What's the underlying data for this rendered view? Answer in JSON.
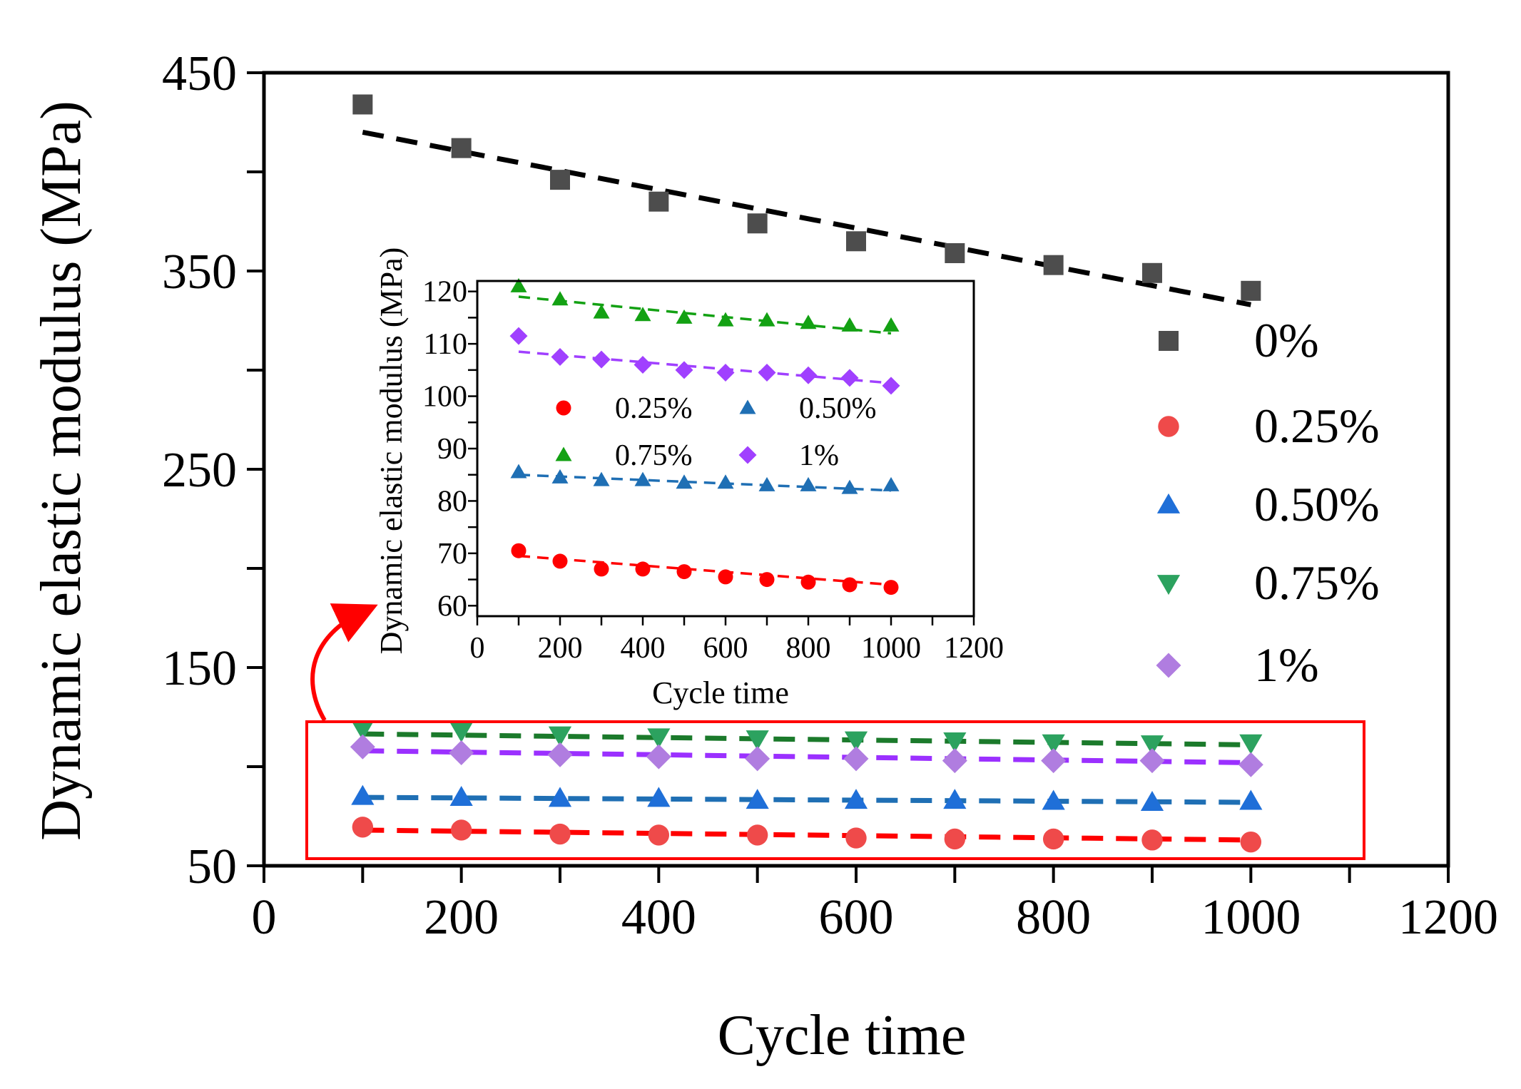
{
  "chart_data": [
    {
      "id": "main",
      "type": "scatter",
      "xlabel": "Cycle time",
      "ylabel": "Dynamic elastic modulus (MPa)",
      "xlim": [
        0,
        1200
      ],
      "ylim": [
        50,
        450
      ],
      "xticks": [
        0,
        200,
        400,
        600,
        800,
        1000,
        1200
      ],
      "yticks": [
        50,
        150,
        250,
        350,
        450
      ],
      "tick_labels_x": [
        "0",
        "200",
        "400",
        "600",
        "800",
        "1000",
        "1200"
      ],
      "tick_labels_y": [
        "50",
        "150",
        "250",
        "350",
        "450"
      ],
      "legend_position": "right",
      "x": [
        100,
        200,
        300,
        400,
        500,
        600,
        700,
        800,
        900,
        1000
      ],
      "series": [
        {
          "name": "0%",
          "marker": "square",
          "color": "#4d4d4d",
          "line_color": "#000000",
          "values": [
            434,
            412,
            396,
            385,
            374,
            365,
            359,
            353,
            349,
            340
          ],
          "fit": [
            [
              100,
              420
            ],
            [
              1000,
              333
            ]
          ]
        },
        {
          "name": "0.25%",
          "marker": "circle",
          "color": "#ef4a4a",
          "line_color": "#ff0000",
          "values": [
            69.5,
            68,
            66,
            65.5,
            65.5,
            64,
            63.5,
            63.5,
            63,
            62
          ],
          "fit": [
            [
              100,
              68
            ],
            [
              1000,
              63
            ]
          ]
        },
        {
          "name": "0.50%",
          "marker": "triangle-up",
          "color": "#1f6fd8",
          "line_color": "#1f6fb4",
          "values": [
            85,
            84.5,
            84,
            84,
            83,
            83,
            83,
            82.5,
            82,
            82.5
          ],
          "fit": [
            [
              100,
              84.5
            ],
            [
              1000,
              82
            ]
          ]
        },
        {
          "name": "0.75%",
          "marker": "triangle-down",
          "color": "#2ca25f",
          "line_color": "#1b7a2b",
          "values": [
            119,
            118,
            116,
            115,
            114,
            113.5,
            113,
            112,
            111.5,
            112
          ],
          "fit": [
            [
              100,
              116.5
            ],
            [
              1000,
              111
            ]
          ]
        },
        {
          "name": "1%",
          "marker": "diamond",
          "color": "#b07de0",
          "line_color": "#9b30ff",
          "values": [
            110,
            107,
            106,
            105,
            104,
            104,
            103,
            103,
            103,
            101
          ],
          "fit": [
            [
              100,
              108
            ],
            [
              1000,
              102
            ]
          ]
        }
      ]
    },
    {
      "id": "inset",
      "type": "scatter",
      "xlabel": "Cycle time",
      "ylabel": "Dynamic elastic modulus (MPa)",
      "xlim": [
        0,
        1200
      ],
      "ylim": [
        58,
        122
      ],
      "xticks": [
        0,
        200,
        400,
        600,
        800,
        1000,
        1200
      ],
      "yticks": [
        60,
        70,
        80,
        90,
        100,
        110,
        120
      ],
      "tick_labels_x": [
        "0",
        "200",
        "400",
        "600",
        "800",
        "1000",
        "1200"
      ],
      "tick_labels_y": [
        "60",
        "70",
        "80",
        "90",
        "100",
        "110",
        "120"
      ],
      "legend_position": "middle, two columns",
      "x": [
        100,
        200,
        300,
        400,
        500,
        600,
        700,
        800,
        900,
        1000
      ],
      "series": [
        {
          "name": "0.25%",
          "marker": "circle",
          "color": "#ff0000",
          "values": [
            70.5,
            68.5,
            67,
            67,
            66.5,
            65.5,
            65,
            64.5,
            64,
            63.5
          ],
          "fit": [
            [
              100,
              69.5
            ],
            [
              1000,
              64
            ]
          ]
        },
        {
          "name": "0.50%",
          "marker": "triangle-up",
          "color": "#1f6fb4",
          "values": [
            85.5,
            84.5,
            84,
            84,
            83.5,
            83.5,
            83,
            83,
            82.5,
            83
          ],
          "fit": [
            [
              100,
              85
            ],
            [
              1000,
              82
            ]
          ]
        },
        {
          "name": "0.75%",
          "marker": "triangle-up",
          "color": "#13a113",
          "values": [
            121,
            118.5,
            116,
            115.5,
            115,
            114.5,
            114.5,
            114,
            113.5,
            113.5
          ],
          "fit": [
            [
              100,
              119
            ],
            [
              1000,
              112
            ]
          ]
        },
        {
          "name": "1%",
          "marker": "diamond",
          "color": "#a040ff",
          "values": [
            111.5,
            107.5,
            107,
            106,
            105,
            104.5,
            104.5,
            104,
            103.5,
            102
          ],
          "fit": [
            [
              100,
              108.5
            ],
            [
              1000,
              102.5
            ]
          ]
        }
      ]
    }
  ]
}
